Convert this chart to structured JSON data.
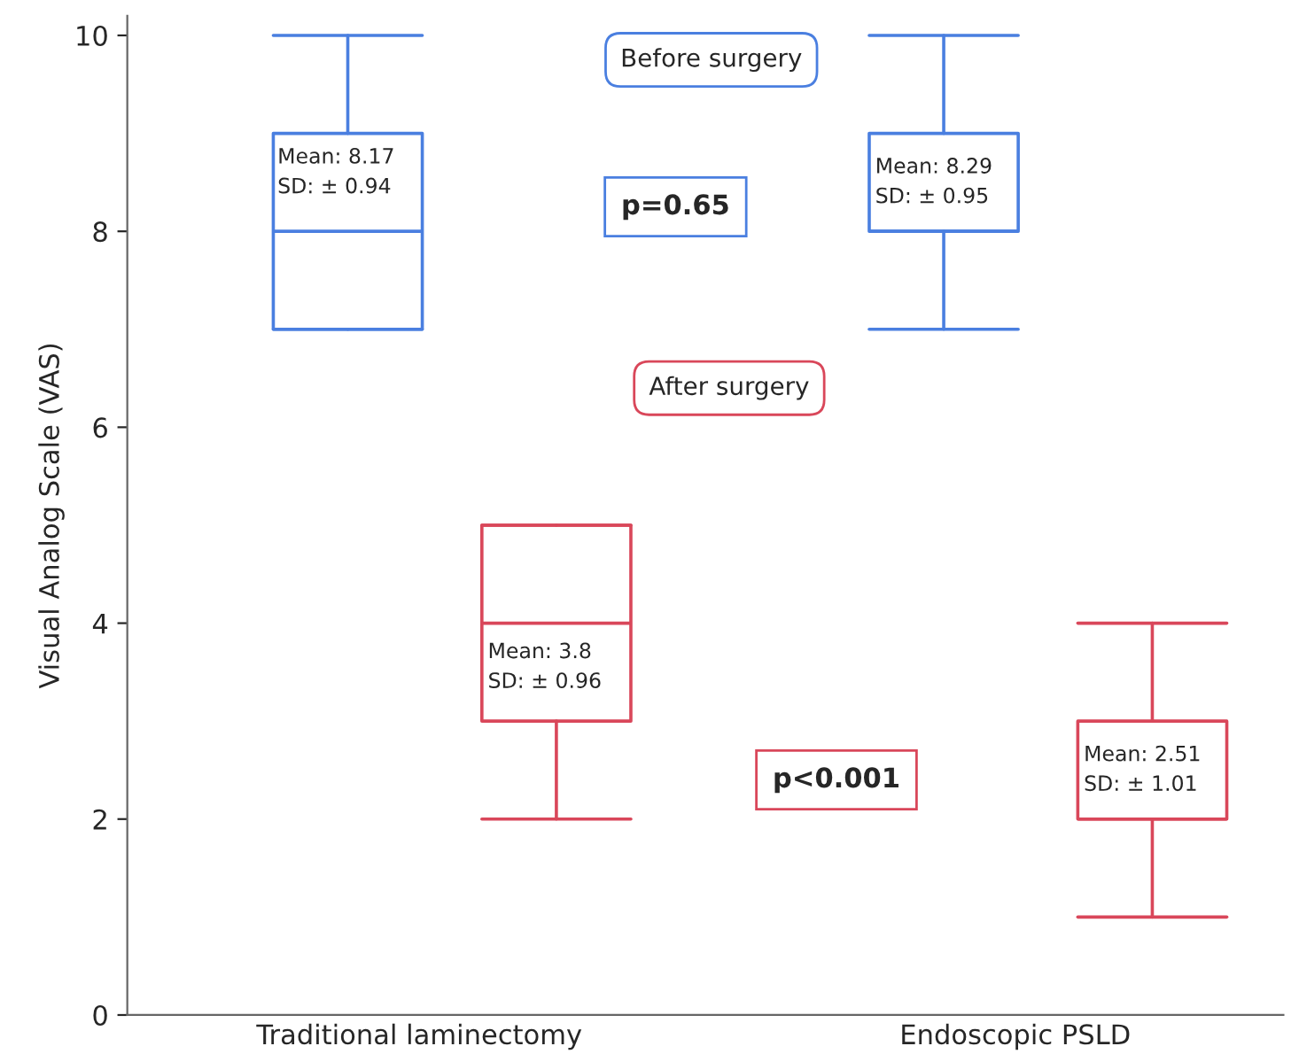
{
  "chart_data": {
    "type": "box",
    "ylabel": "Visual Analog Scale (VAS)",
    "categories": [
      "Traditional laminectomy",
      "Endoscopic PSLD"
    ],
    "ylim": [
      0,
      10.2
    ],
    "yticks": [
      0,
      2,
      4,
      6,
      8,
      10
    ],
    "grid": false,
    "legend": false,
    "series": [
      {
        "name": "Before surgery",
        "color": "#4a7fe0",
        "boxes": [
          {
            "low": 7,
            "q1": 7,
            "median": 8,
            "q3": 9,
            "high": 10
          },
          {
            "low": 7,
            "q1": 8,
            "median": 8,
            "q3": 9,
            "high": 10
          }
        ]
      },
      {
        "name": "After surgery",
        "color": "#d9475a",
        "boxes": [
          {
            "low": 2,
            "q1": 3,
            "median": 4,
            "q3": 5,
            "high": 5
          },
          {
            "low": 1,
            "q1": 2,
            "median": 2,
            "q3": 3,
            "high": 4
          }
        ]
      }
    ],
    "annotations": [
      "Mean: 8.17\nSD: ± 0.94",
      "Mean: 8.29\nSD: ± 0.95",
      "Mean: 3.8\nSD: ± 0.96",
      "Mean: 2.51\nSD: ± 1.01",
      "p=0.65",
      "p<0.001"
    ]
  }
}
